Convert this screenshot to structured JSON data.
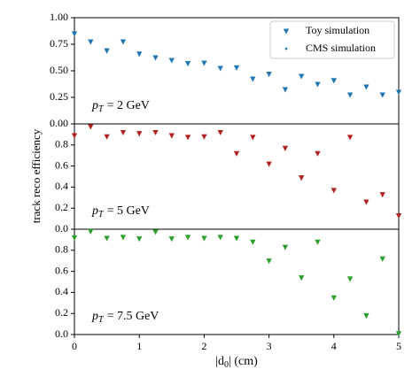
{
  "chart_data": [
    {
      "type": "scatter",
      "annotation": {
        "symbol": "p",
        "sub": "T",
        "text": "= 2 GeV"
      },
      "x": [
        0,
        0.25,
        0.5,
        0.75,
        1,
        1.25,
        1.5,
        1.75,
        2,
        2.25,
        2.5,
        2.75,
        3,
        3.25,
        3.5,
        3.75,
        4,
        4.25,
        4.5,
        4.75,
        5
      ],
      "xlim": [
        0,
        5
      ],
      "ylim": [
        0,
        1
      ],
      "yticks": [
        {
          "value": 0,
          "label": "0.00"
        },
        {
          "value": 0.25,
          "label": "0.25"
        },
        {
          "value": 0.5,
          "label": "0.50"
        },
        {
          "value": 0.75,
          "label": "0.75"
        },
        {
          "value": 1,
          "label": "1.00"
        }
      ],
      "legend": "upper right",
      "series": [
        {
          "name": "Toy simulation",
          "marker": "triangle",
          "color": "#1f77b4",
          "values": [
            0.85,
            0.775,
            0.69,
            0.775,
            0.66,
            0.625,
            0.6,
            0.57,
            0.575,
            0.525,
            0.53,
            0.425,
            0.47,
            0.325,
            0.45,
            0.375,
            0.41,
            0.275,
            0.35,
            0.275,
            0.3
          ]
        },
        {
          "name": "CMS simulation",
          "marker": "dot",
          "color": "#1f77b4",
          "values": [
            0.85,
            0.775,
            0.69,
            0.775,
            0.66,
            0.625,
            0.6,
            0.57,
            0.575,
            0.525,
            0.53,
            0.425,
            0.47,
            0.325,
            0.45,
            0.375,
            0.41,
            0.275,
            0.35,
            0.275,
            0.3
          ],
          "errors": [
            0.02,
            0.02,
            0.02,
            0.02,
            0.02,
            0.02,
            0.02,
            0.02,
            0.02,
            0.02,
            0.02,
            0.02,
            0.02,
            0.02,
            0.02,
            0.02,
            0.02,
            0.02,
            0.02,
            0.02,
            0.02
          ]
        }
      ]
    },
    {
      "type": "scatter",
      "annotation": {
        "symbol": "p",
        "sub": "T",
        "text": "= 5 GeV"
      },
      "ylabel": "track reco efficiency",
      "x": [
        0,
        0.25,
        0.5,
        0.75,
        1,
        1.25,
        1.5,
        1.75,
        2,
        2.25,
        2.5,
        2.75,
        3,
        3.25,
        3.5,
        3.75,
        4,
        4.25,
        4.5,
        4.75,
        5
      ],
      "xlim": [
        0,
        5
      ],
      "ylim": [
        0,
        1
      ],
      "yticks": [
        {
          "value": 0,
          "label": "0.0"
        },
        0.2,
        0.4,
        0.6,
        0.8
      ],
      "series": [
        {
          "marker": "triangle",
          "color": "#b22222",
          "values": [
            0.89,
            0.975,
            0.88,
            0.92,
            0.91,
            0.92,
            0.89,
            0.875,
            0.88,
            0.92,
            0.72,
            0.875,
            0.62,
            0.77,
            0.49,
            0.72,
            0.37,
            0.875,
            0.26,
            0.33,
            0.13
          ]
        },
        {
          "marker": "dot",
          "color": "#b22222",
          "values": [
            0.89,
            0.975,
            0.88,
            0.92,
            0.91,
            0.92,
            0.89,
            0.875,
            0.88,
            0.92,
            0.72,
            0.875,
            0.62,
            0.77,
            0.49,
            0.72,
            0.37,
            0.875,
            0.26,
            0.33,
            0.13
          ],
          "errors": [
            0.02,
            0.02,
            0.02,
            0.02,
            0.02,
            0.02,
            0.02,
            0.02,
            0.02,
            0.02,
            0.02,
            0.02,
            0.02,
            0.02,
            0.02,
            0.02,
            0.02,
            0.02,
            0.02,
            0.02,
            0.02
          ]
        }
      ]
    },
    {
      "type": "scatter",
      "annotation": {
        "symbol": "p",
        "sub": "T",
        "text": "= 7.5 GeV"
      },
      "xlabel": {
        "main": "|d",
        "sub": "0",
        "rest": "| (cm)"
      },
      "x": [
        0,
        0.25,
        0.5,
        0.75,
        1,
        1.25,
        1.5,
        1.75,
        2,
        2.25,
        2.5,
        2.75,
        3,
        3.25,
        3.5,
        3.75,
        4,
        4.25,
        4.5,
        4.75,
        5
      ],
      "xlim": [
        0,
        5
      ],
      "ylim": [
        0,
        1
      ],
      "xticks": [
        0,
        1,
        2,
        3,
        4,
        5
      ],
      "yticks": [
        {
          "value": 0,
          "label": "0.0"
        },
        0.2,
        0.4,
        0.6,
        0.8
      ],
      "series": [
        {
          "marker": "triangle",
          "color": "#2ca02c",
          "values": [
            0.92,
            0.98,
            0.915,
            0.925,
            0.91,
            0.975,
            0.91,
            0.925,
            0.915,
            0.925,
            0.915,
            0.88,
            0.7,
            0.83,
            0.54,
            0.88,
            0.35,
            0.53,
            0.18,
            0.72,
            0.01
          ]
        },
        {
          "marker": "dot",
          "color": "#2ca02c",
          "values": [
            0.92,
            0.98,
            0.915,
            0.925,
            0.91,
            0.975,
            0.91,
            0.925,
            0.915,
            0.925,
            0.915,
            0.88,
            0.7,
            0.83,
            0.54,
            0.88,
            0.35,
            0.53,
            0.18,
            0.72,
            0.01
          ],
          "errors": [
            0.02,
            0.02,
            0.02,
            0.02,
            0.02,
            0.02,
            0.02,
            0.02,
            0.02,
            0.02,
            0.02,
            0.02,
            0.02,
            0.02,
            0.02,
            0.02,
            0.02,
            0.02,
            0.02,
            0.02,
            0.02
          ]
        }
      ]
    }
  ]
}
